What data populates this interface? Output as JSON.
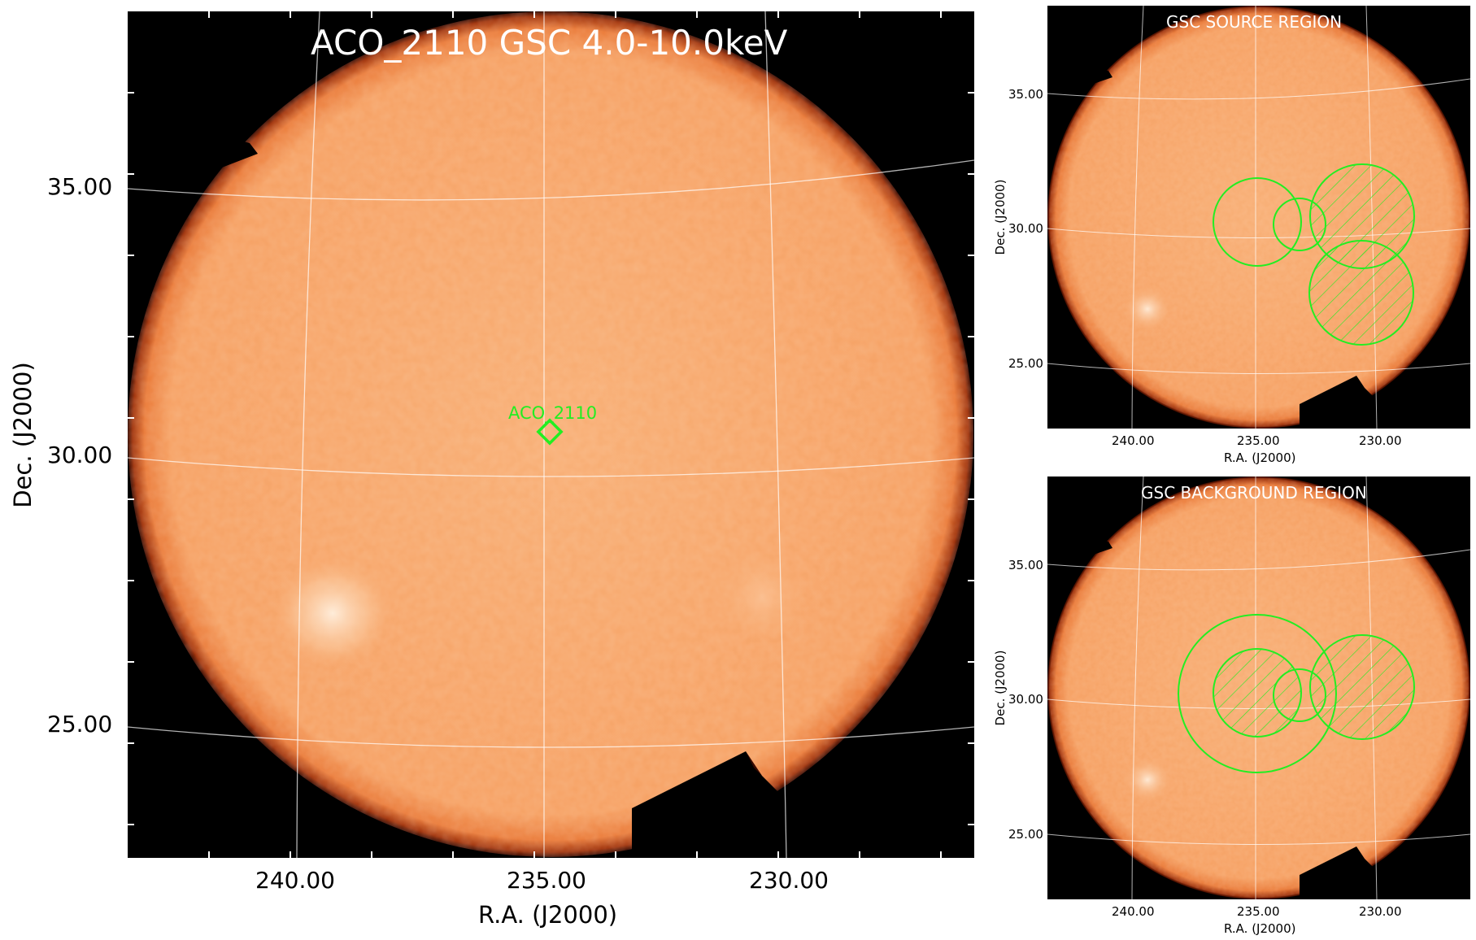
{
  "main_panel": {
    "title": "ACO_2110 GSC 4.0-10.0keV",
    "source_label": "ACO_2110",
    "x_ticks": [
      "240.00",
      "235.00",
      "230.00"
    ],
    "y_ticks": [
      "35.00",
      "30.00",
      "25.00"
    ],
    "xlabel": "R.A. (J2000)",
    "ylabel": "Dec. (J2000)"
  },
  "source_panel": {
    "title": "GSC SOURCE REGION",
    "x_ticks": [
      "240.00",
      "235.00",
      "230.00"
    ],
    "y_ticks": [
      "35.00",
      "30.00",
      "25.00"
    ],
    "xlabel": "R.A. (J2000)",
    "ylabel": "Dec. (J2000)"
  },
  "background_panel": {
    "title": "GSC BACKGROUND REGION",
    "x_ticks": [
      "240.00",
      "235.00",
      "230.00"
    ],
    "y_ticks": [
      "35.00",
      "30.00",
      "25.00"
    ],
    "xlabel": "R.A. (J2000)",
    "ylabel": "Dec. (J2000)"
  },
  "colors": {
    "disk": "#f6a264",
    "rim": "#7a1e00",
    "region": "#22ee22",
    "grid": "#ffffff"
  }
}
